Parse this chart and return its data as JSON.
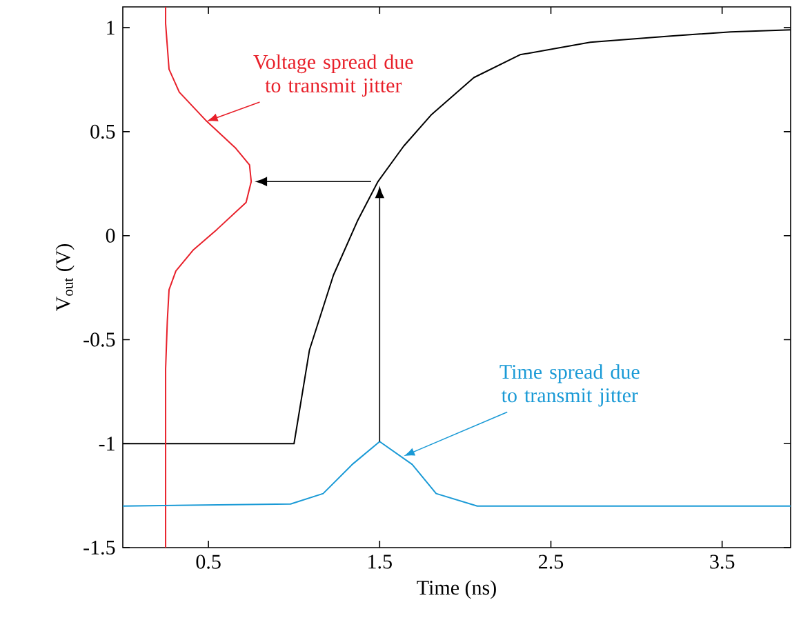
{
  "chart_data": {
    "type": "line",
    "xlabel": "Time (ns)",
    "ylabel": "V$_{out}$ (V)",
    "xlim": [
      0,
      3.9
    ],
    "ylim": [
      -1.5,
      1.1
    ],
    "xticks": [
      0.5,
      1.5,
      2.5,
      3.5
    ],
    "yticks": [
      -1.5,
      -1,
      -0.5,
      0,
      0.5,
      1
    ],
    "grid": false,
    "marker": "none",
    "line_style": "solid",
    "series": [
      {
        "color": "#000000",
        "x": [
          0,
          1.0,
          1.09,
          1.23,
          1.37,
          1.49,
          1.64,
          1.8,
          2.05,
          2.32,
          2.73,
          3.2,
          3.55,
          3.9
        ],
        "values": [
          -1,
          -1,
          -0.55,
          -0.19,
          0.07,
          0.26,
          0.43,
          0.58,
          0.76,
          0.87,
          0.93,
          0.96,
          0.98,
          0.99
        ]
      },
      {
        "color": "#e8202a",
        "x": [
          0.25,
          0.25,
          0.26,
          0.27,
          0.31,
          0.41,
          0.55,
          0.72,
          0.75,
          0.74,
          0.66,
          0.49,
          0.33,
          0.27,
          0.26,
          0.25,
          0.25
        ],
        "values": [
          -1.5,
          -0.64,
          -0.41,
          -0.26,
          -0.17,
          -0.07,
          0.03,
          0.16,
          0.26,
          0.34,
          0.42,
          0.55,
          0.69,
          0.8,
          0.91,
          1.02,
          1.1
        ]
      },
      {
        "color": "#1a9ad6",
        "x": [
          0,
          0.98,
          1.17,
          1.34,
          1.5,
          1.69,
          1.83,
          2.07,
          3.9
        ],
        "values": [
          -1.3,
          -1.29,
          -1.24,
          -1.1,
          -0.99,
          -1.1,
          -1.24,
          -1.3,
          -1.3
        ]
      }
    ],
    "annotations": [
      {
        "text": "Voltage spread due to transmit jitter",
        "x": 0.49,
        "y": 0.55
      },
      {
        "text": "Time spread due to transmit jitter",
        "x": 1.64,
        "y": -1.06
      }
    ]
  }
}
